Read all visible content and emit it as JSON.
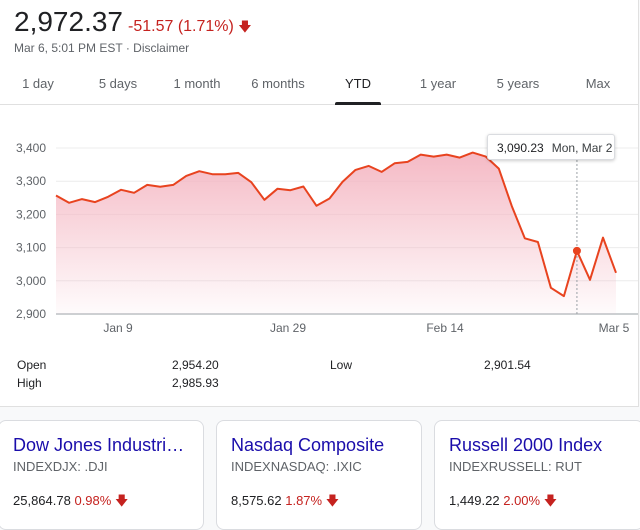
{
  "quote": {
    "price": "2,972.37",
    "change": "-51.57 (1.71%)",
    "subline": "Mar 6, 5:01 PM EST · Disclaimer",
    "down_color": "#c5221f",
    "arrow_icon": "arrow-down-icon"
  },
  "tabs": [
    {
      "label": "1 day"
    },
    {
      "label": "5 days"
    },
    {
      "label": "1 month"
    },
    {
      "label": "6 months"
    },
    {
      "label": "YTD",
      "active": true
    },
    {
      "label": "1 year"
    },
    {
      "label": "5 years"
    },
    {
      "label": "Max"
    }
  ],
  "chart_data": {
    "type": "area",
    "y_ticks": [
      "3,400",
      "3,300",
      "3,200",
      "3,100",
      "3,000",
      "2,900"
    ],
    "x_ticks": [
      "Jan 9",
      "Jan 29",
      "Feb 14",
      "Mar 5"
    ],
    "ylim": [
      2900,
      3420
    ],
    "line_color": "#e8431f",
    "fill_color": "#f4b6c2",
    "series": [
      {
        "values": [
          3257,
          3235,
          3246,
          3237,
          3253,
          3274,
          3265,
          3289,
          3283,
          3289,
          3316,
          3330,
          3321,
          3321,
          3325,
          3297,
          3244,
          3277,
          3273,
          3284,
          3226,
          3248,
          3298,
          3334,
          3346,
          3328,
          3354,
          3358,
          3380,
          3374,
          3380,
          3371,
          3386,
          3374,
          3338,
          3225,
          3128,
          3117,
          2979,
          2954,
          3090,
          3003,
          3130,
          3024
        ]
      }
    ],
    "highlight": {
      "value": "3,090.23",
      "date": "Mon, Mar 2"
    }
  },
  "stats": {
    "open_label": "Open",
    "open_value": "2,954.20",
    "high_label": "High",
    "high_value": "2,985.93",
    "low_label": "Low",
    "low_value": "2,901.54"
  },
  "indices": [
    {
      "name": "Dow Jones Industri…",
      "symbol": "INDEXDJX: .DJI",
      "value": "25,864.78",
      "change": "0.98%"
    },
    {
      "name": "Nasdaq Composite",
      "symbol": "INDEXNASDAQ: .IXIC",
      "value": "8,575.62",
      "change": "1.87%"
    },
    {
      "name": "Russell 2000 Index",
      "symbol": "INDEXRUSSELL: RUT",
      "value": "1,449.22",
      "change": "2.00%"
    }
  ]
}
